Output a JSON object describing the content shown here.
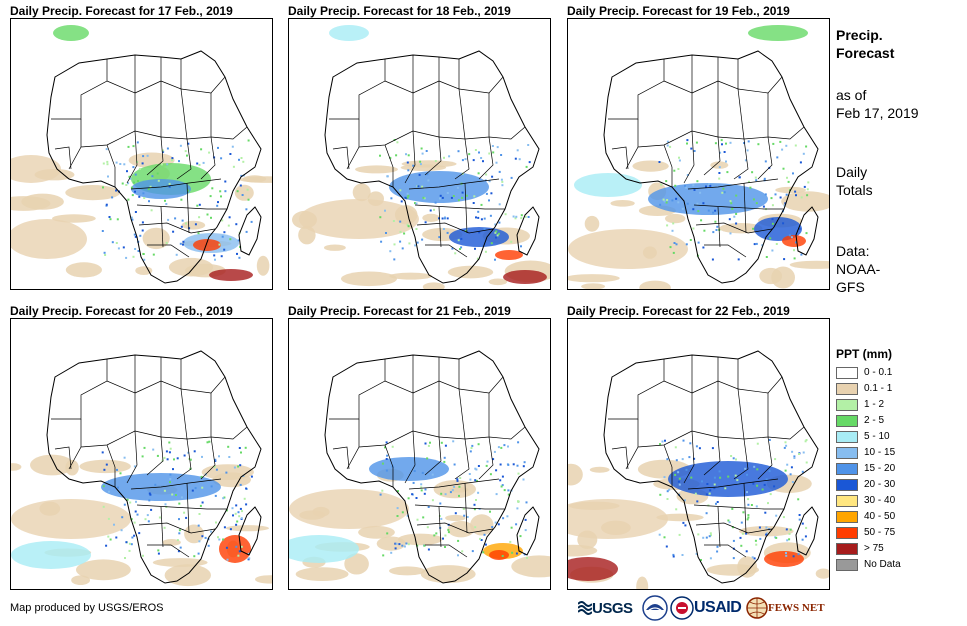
{
  "panels": [
    {
      "title": "Daily Precip. Forecast for 17 Feb., 2019",
      "day": 0
    },
    {
      "title": "Daily Precip. Forecast for 18 Feb., 2019",
      "day": 1
    },
    {
      "title": "Daily Precip. Forecast for 19 Feb., 2019",
      "day": 2
    },
    {
      "title": "Daily Precip. Forecast for 20 Feb., 2019",
      "day": 3
    },
    {
      "title": "Daily Precip. Forecast for 21 Feb., 2019",
      "day": 4
    },
    {
      "title": "Daily Precip. Forecast for 22 Feb., 2019",
      "day": 5
    }
  ],
  "sidebar": {
    "title_line1": "Precip.",
    "title_line2": "Forecast",
    "asof_line1": "as of",
    "asof_line2": "Feb 17, 2019",
    "totals_line1": "Daily",
    "totals_line2": "Totals",
    "data_line1": "Data:",
    "data_line2": "NOAA-",
    "data_line3": "GFS"
  },
  "legend": {
    "title": "PPT (mm)",
    "items": [
      {
        "label": "0 - 0.1",
        "color": "#ffffff"
      },
      {
        "label": "0.1 - 1",
        "color": "#e8d2b0"
      },
      {
        "label": "1 - 2",
        "color": "#b3f0a6"
      },
      {
        "label": "2 - 5",
        "color": "#66d966"
      },
      {
        "label": "5 - 10",
        "color": "#a8ecf5"
      },
      {
        "label": "10 - 15",
        "color": "#87bdf0"
      },
      {
        "label": "15 - 20",
        "color": "#4f93e8"
      },
      {
        "label": "20 - 30",
        "color": "#1a57d6"
      },
      {
        "label": "30 - 40",
        "color": "#ffe680"
      },
      {
        "label": "40 - 50",
        "color": "#ffa500"
      },
      {
        "label": "50 - 75",
        "color": "#ff3c00"
      },
      {
        "label": "> 75",
        "color": "#a61c1c"
      },
      {
        "label": "No Data",
        "color": "#999999"
      }
    ]
  },
  "footer": {
    "credit": "Map produced by USGS/EROS",
    "usgs": "USGS",
    "usaid": "USAID",
    "fews": "FEWS NET"
  }
}
